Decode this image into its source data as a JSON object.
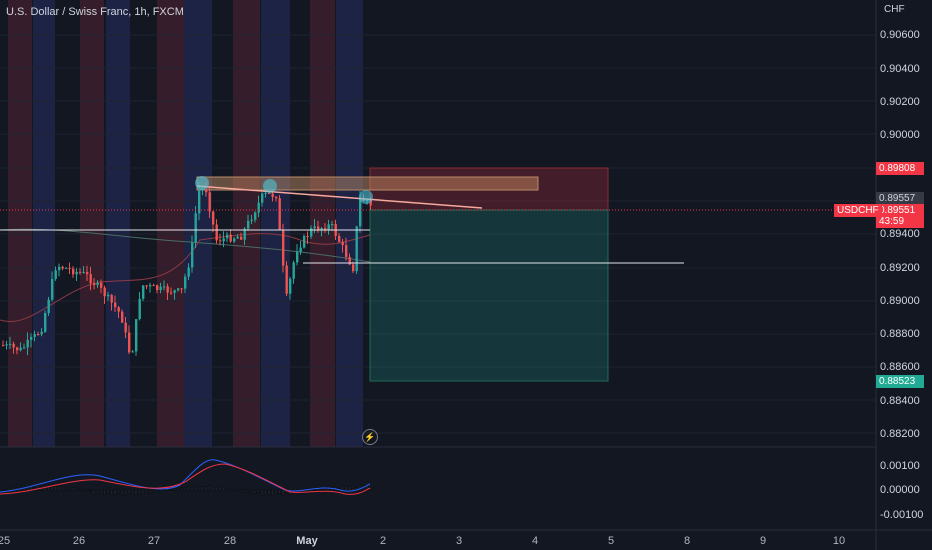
{
  "header": {
    "title": "U.S. Dollar / Swiss Franc, 1h, FXCM",
    "currency": "CHF"
  },
  "price_scale": {
    "labels": [
      "0.90600",
      "0.90400",
      "0.90200",
      "0.90000",
      "0.89400",
      "0.89200",
      "0.89000",
      "0.88800",
      "0.88600",
      "0.88400",
      "0.88200"
    ]
  },
  "badges": {
    "stop": "0.89808",
    "level": "0.89557",
    "last": "0.89551",
    "countdown": "43:59",
    "target": "0.88523",
    "symbol": "USDCHF"
  },
  "oscillator": {
    "labels": [
      "0.00100",
      "0.00000",
      "-0.00100"
    ]
  },
  "time_axis": {
    "labels": [
      "25",
      "26",
      "27",
      "28",
      "May",
      "2",
      "3",
      "4",
      "5",
      "8",
      "9",
      "10"
    ]
  },
  "colors": {
    "background": "#131722",
    "up": "#26a69a",
    "down": "#ef5350",
    "stop_zone": "rgba(242,54,69,0.22)",
    "target_zone": "rgba(34,171,148,0.22)"
  },
  "icons": {
    "replay": "lightning-icon"
  }
}
